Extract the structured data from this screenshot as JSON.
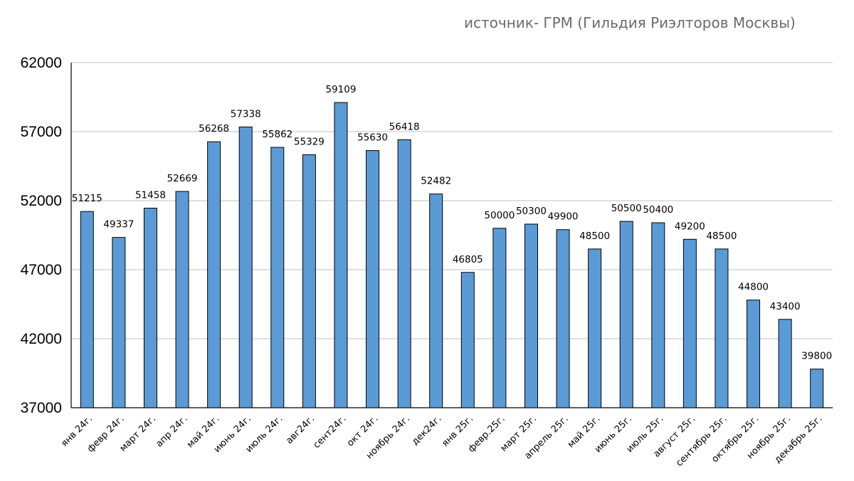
{
  "source_note": "источник- ГРМ (Гильдия Риэлторов Москвы)",
  "colors": {
    "bar": "#5b9bd5",
    "bar_stroke": "#000000",
    "grid": "#c0c0c0",
    "axis": "#000000"
  },
  "chart_data": {
    "type": "bar",
    "title": "",
    "xlabel": "",
    "ylabel": "",
    "ylim": [
      37000,
      62000
    ],
    "yticks": [
      37000,
      42000,
      47000,
      52000,
      57000,
      62000
    ],
    "grid": true,
    "legend": "none",
    "categories": [
      "янв 24г.",
      "февр 24г.",
      "март 24г.",
      "апр 24г.",
      "май 24г.",
      "июнь 24г.",
      "июль 24г.",
      "авг24г.",
      "сент24г.",
      "окт 24г.",
      "ноябрь 24г.",
      "дек24г.",
      "янв 25г.",
      "февр.25г.",
      "март 25г.",
      "апрель 25г.",
      "май 25г.",
      "июнь 25г.",
      "июль 25г.",
      "август 25г.",
      "сентябрь 25г.",
      "октябрь 25г.",
      "ноябрь 25г.",
      "декабрь 25г."
    ],
    "values": [
      51215,
      49337,
      51458,
      52669,
      56268,
      57338,
      55862,
      55329,
      59109,
      55630,
      56418,
      52482,
      46805,
      50000,
      50300,
      49900,
      48500,
      50500,
      50400,
      49200,
      48500,
      44800,
      43400,
      39800
    ]
  }
}
